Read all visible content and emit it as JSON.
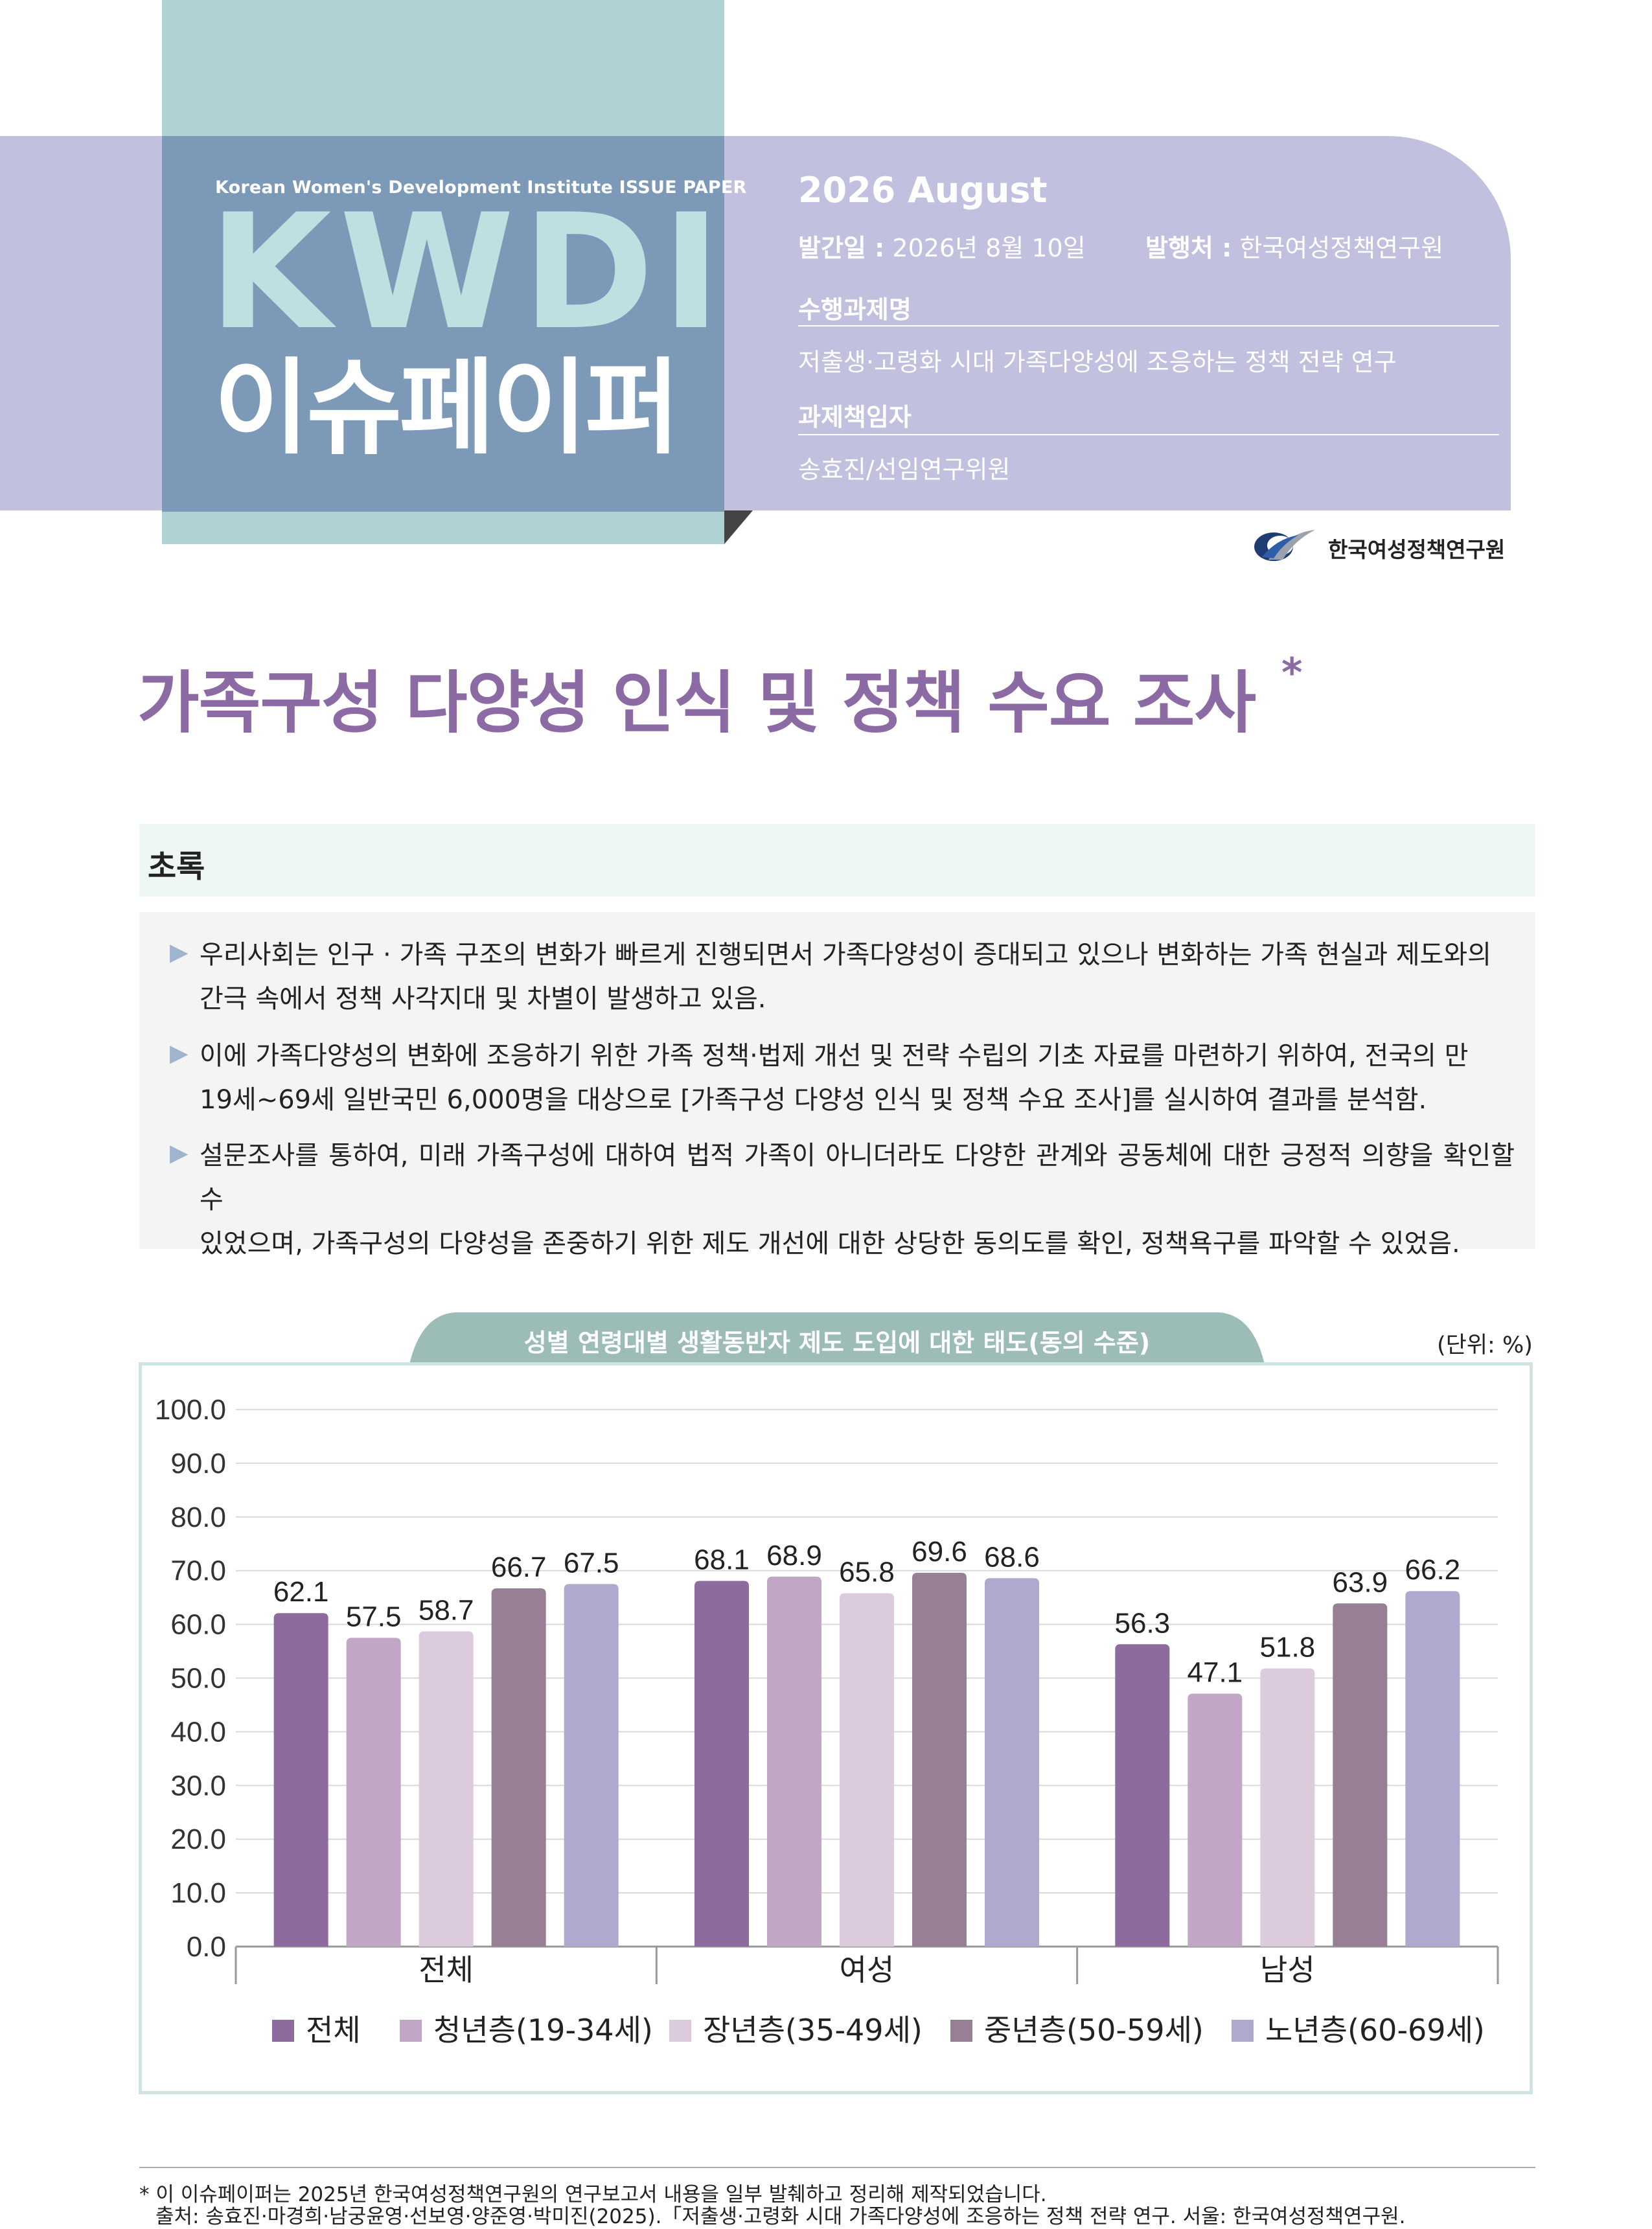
{
  "header": {
    "publisher_series_en": "Korean Women's Development Institute ISSUE PAPER",
    "series_logo": "KWDI",
    "series_name": "이슈페이퍼",
    "issue": "2026 August",
    "pub_date_label": "발간일 :",
    "pub_date_value": "2026년 8월 10일",
    "publisher_label": "발행처 :",
    "publisher_value": "한국여성정책연구원",
    "project_label": "수행과제명",
    "project_value": "저출생·고령화 시대 가족다양성에 조응하는 정책 전략 연구",
    "lead_label": "과제책임자",
    "lead_value": "송효진/선임연구위원",
    "org_name": "한국여성정책연구원",
    "colors": {
      "band": "#c1c0df",
      "logo_box": "#7c9ab8",
      "teal": "#afd2d4",
      "title": "#8c6aa3"
    }
  },
  "title": {
    "text": "가족구성 다양성 인식 및 정책 수요 조사",
    "marker": "*"
  },
  "summary": {
    "heading": "초록",
    "bullet_icon": "triangle-right-icon",
    "items": [
      [
        "우리사회는 인구 · 가족 구조의 변화가 빠르게 진행되면서 가족다양성이 증대되고 있으나 변화하는 가족 현실과 제도와의",
        "간극 속에서 정책 사각지대 및 차별이 발생하고 있음."
      ],
      [
        "이에 가족다양성의 변화에 조응하기 위한 가족 정책·법제 개선 및 전략 수립의 기초 자료를 마련하기 위하여, 전국의 만",
        "19세~69세 일반국민 6,000명을 대상으로 [가족구성 다양성 인식 및 정책 수요 조사]를 실시하여 결과를 분석함."
      ],
      [
        "설문조사를 통하여, 미래 가족구성에 대하여 법적 가족이 아니더라도 다양한 관계와 공동체에 대한 긍정적 의향을 확인할 수",
        "있었으며, 가족구성의 다양성을 존중하기 위한 제도 개선에 대한 상당한 동의도를 확인, 정책욕구를 파악할 수 있었음."
      ]
    ]
  },
  "chart_data": {
    "type": "bar",
    "title": "성별 연령대별 생활동반자 제도 도입에 대한 태도(동의 수준)",
    "unit": "(단위: %)",
    "categories": [
      "전체",
      "여성",
      "남성"
    ],
    "ylim": [
      0,
      100
    ],
    "ytick_labels": [
      "100.0",
      "90.0",
      "80.0",
      "70.0",
      "60.0",
      "50.0",
      "40.0",
      "30.0",
      "20.0",
      "10.0",
      "0.0"
    ],
    "grid": true,
    "legend_position": "bottom",
    "series": [
      {
        "name": "전체",
        "color": "#8d6b9f",
        "values": [
          62.1,
          68.1,
          56.3
        ]
      },
      {
        "name": "청년층(19-34세)",
        "color": "#c1a6c6",
        "values": [
          57.5,
          68.9,
          47.1
        ]
      },
      {
        "name": "장년층(35-49세)",
        "color": "#dccbdd",
        "values": [
          58.7,
          65.8,
          51.8
        ]
      },
      {
        "name": "중년층(50-59세)",
        "color": "#977f95",
        "values": [
          66.7,
          69.6,
          63.9
        ]
      },
      {
        "name": "노년층(60-69세)",
        "color": "#b0a8cf",
        "values": [
          67.5,
          68.6,
          66.2
        ]
      }
    ]
  },
  "footnote": {
    "line1": "* 이 이슈페이퍼는 2025년 한국여성정책연구원의 연구보고서 내용을 일부 발췌하고 정리해 제작되었습니다.",
    "line2": "출처: 송효진·마경희·남궁윤영·선보영·양준영·박미진(2025).「저출생·고령화 시대 가족다양성에 조응하는 정책 전략 연구. 서울: 한국여성정책연구원."
  }
}
